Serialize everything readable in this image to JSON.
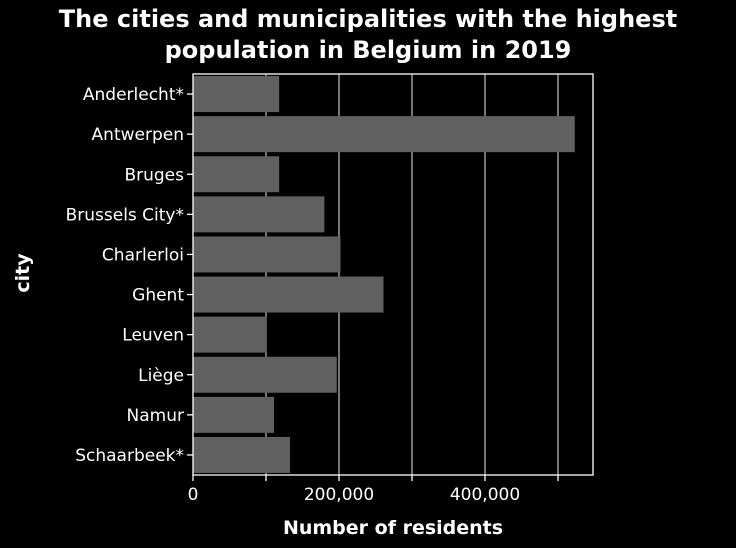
{
  "chart_data": {
    "type": "bar",
    "orientation": "horizontal",
    "title_lines": [
      "The cities and municipalities with the highest",
      "population in Belgium in 2019"
    ],
    "xlabel": "Number of residents",
    "ylabel": "city",
    "categories": [
      "Anderlecht*",
      "Antwerpen",
      "Bruges",
      "Brussels City*",
      "Charlerloi",
      "Ghent",
      "Leuven",
      "Liège",
      "Namur",
      "Schaarbeek*"
    ],
    "values": [
      118000,
      523000,
      118000,
      180000,
      202000,
      261000,
      101000,
      197000,
      111000,
      133000
    ],
    "xlim": [
      0,
      550000
    ],
    "x_ticks": [
      0,
      100000,
      200000,
      300000,
      400000,
      500000
    ],
    "x_tick_labels": [
      "0",
      "",
      "200,000",
      "",
      "400,000",
      ""
    ],
    "grid": "vertical",
    "legend": "none",
    "colors": {
      "background": "#000000",
      "plot_background": "#000000",
      "bar": "#606060",
      "grid": "#b3b3b3",
      "axis": "#ffffff",
      "text": "#ffffff"
    }
  }
}
